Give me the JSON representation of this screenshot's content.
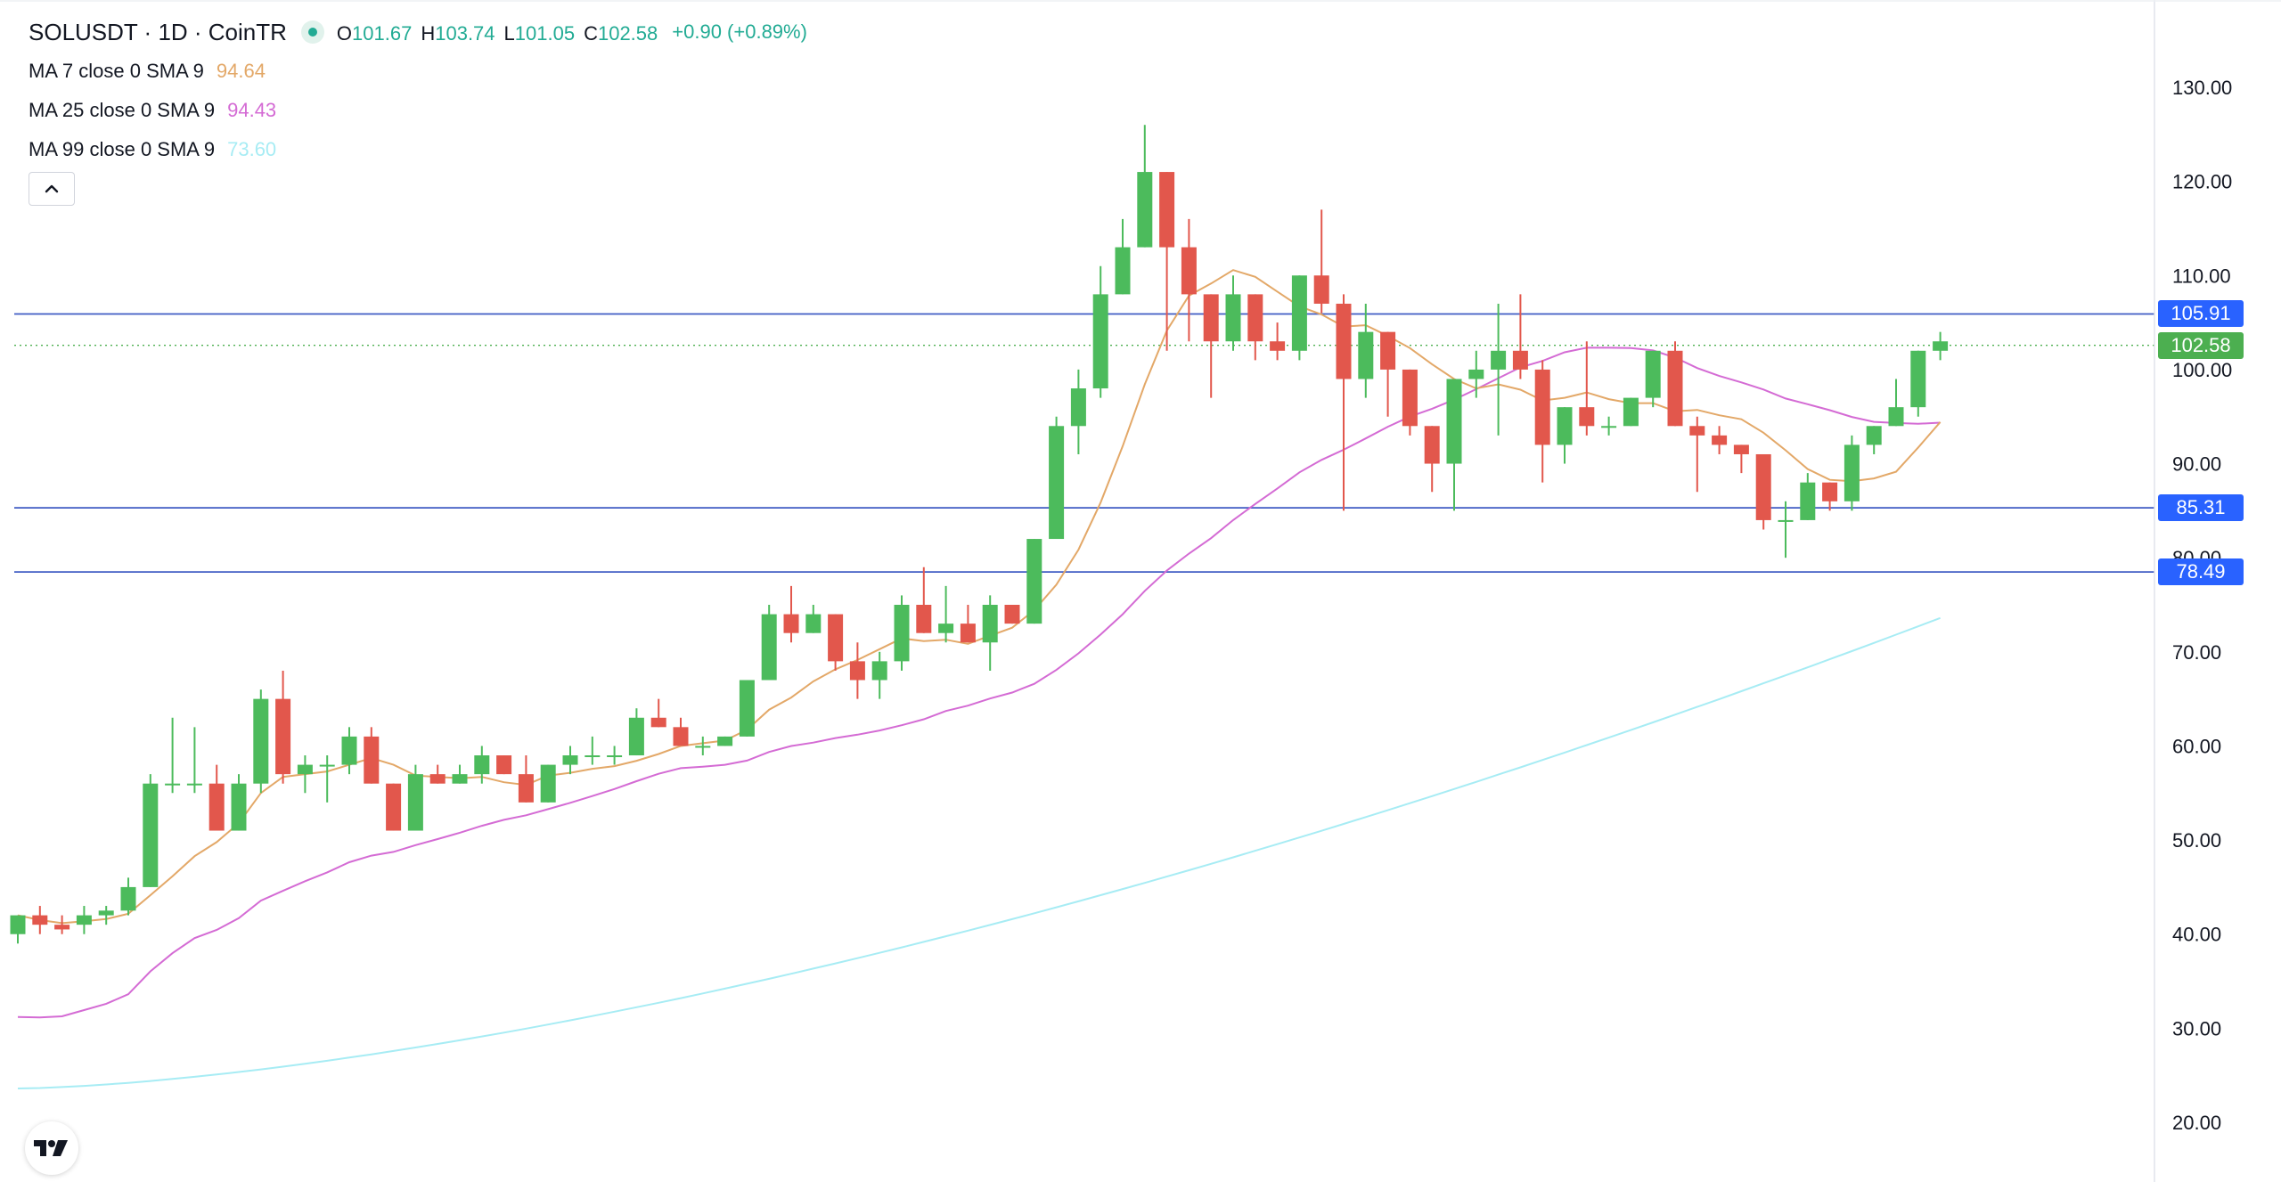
{
  "header": {
    "symbol": "SOLUSDT · 1D · CoinTR",
    "ohlc": [
      {
        "k": "O",
        "v": "101.67"
      },
      {
        "k": "H",
        "v": "103.74"
      },
      {
        "k": "L",
        "v": "101.05"
      },
      {
        "k": "C",
        "v": "102.58"
      }
    ],
    "change": "+0.90 (+0.89%)"
  },
  "indicators": [
    {
      "label": "MA 7 close 0 SMA 9",
      "value": "94.64",
      "color": "#e3a868"
    },
    {
      "label": "MA 25 close 0 SMA 9",
      "value": "94.43",
      "color": "#d46bd4"
    },
    {
      "label": "MA 99 close 0 SMA 9",
      "value": "73.60",
      "color": "#a7ecf4"
    }
  ],
  "price_tags": [
    {
      "value": "105.91",
      "color": "#2962ff"
    },
    {
      "value": "102.58",
      "color": "#4caf50"
    },
    {
      "value": "85.31",
      "color": "#2962ff"
    },
    {
      "value": "78.49",
      "color": "#2962ff"
    }
  ],
  "icons": {
    "collapse": "chevron-up-icon",
    "logo": "tradingview-logo-icon"
  },
  "chart_data": {
    "type": "candlestick",
    "y_range": [
      15,
      135
    ],
    "y_ticks": [
      "130.00",
      "120.00",
      "110.00",
      "100.00",
      "90.00",
      "80.00",
      "70.00",
      "60.00",
      "50.00",
      "40.00",
      "30.00",
      "20.00"
    ],
    "grid": false,
    "up_color": "#4cbb5c",
    "down_color": "#e2574c",
    "horizontal_lines": [
      105.91,
      85.31,
      78.49
    ],
    "last_price": 102.58,
    "candles": [
      [
        40,
        42,
        39,
        42
      ],
      [
        42,
        43,
        40,
        41
      ],
      [
        41,
        42,
        40,
        40.5
      ],
      [
        41,
        43,
        40,
        42
      ],
      [
        42,
        43,
        41,
        42.5
      ],
      [
        42.5,
        46,
        42,
        45
      ],
      [
        45,
        57,
        45,
        56
      ],
      [
        56,
        63,
        55,
        56
      ],
      [
        56,
        62,
        55,
        56
      ],
      [
        56,
        58,
        51,
        51
      ],
      [
        51,
        57,
        51,
        56
      ],
      [
        56,
        66,
        55,
        65
      ],
      [
        65,
        68,
        56,
        57
      ],
      [
        57,
        59,
        55,
        58
      ],
      [
        58,
        59,
        54,
        58
      ],
      [
        58,
        62,
        57,
        61
      ],
      [
        61,
        62,
        56,
        56
      ],
      [
        56,
        56,
        51,
        51
      ],
      [
        51,
        58,
        51,
        57
      ],
      [
        57,
        58,
        56,
        56
      ],
      [
        56,
        58,
        56,
        57
      ],
      [
        57,
        60,
        56,
        59
      ],
      [
        59,
        59,
        57,
        57
      ],
      [
        57,
        59,
        54,
        54
      ],
      [
        54,
        58,
        54,
        58
      ],
      [
        58,
        60,
        57,
        59
      ],
      [
        59,
        61,
        58,
        59
      ],
      [
        59,
        60,
        58,
        59
      ],
      [
        59,
        64,
        59,
        63
      ],
      [
        63,
        65,
        62,
        62
      ],
      [
        62,
        63,
        60,
        60
      ],
      [
        60,
        61,
        59,
        60
      ],
      [
        60,
        61,
        60,
        61
      ],
      [
        61,
        67,
        61,
        67
      ],
      [
        67,
        75,
        67,
        74
      ],
      [
        74,
        77,
        71,
        72
      ],
      [
        72,
        75,
        72,
        74
      ],
      [
        74,
        74,
        68,
        69
      ],
      [
        69,
        71,
        65,
        67
      ],
      [
        67,
        70,
        65,
        69
      ],
      [
        69,
        76,
        68,
        75
      ],
      [
        75,
        79,
        72,
        72
      ],
      [
        72,
        77,
        71,
        73
      ],
      [
        73,
        75,
        71,
        71
      ],
      [
        71,
        76,
        68,
        75
      ],
      [
        75,
        75,
        73,
        73
      ],
      [
        73,
        82,
        73,
        82
      ],
      [
        82,
        95,
        82,
        94
      ],
      [
        94,
        100,
        91,
        98
      ],
      [
        98,
        111,
        97,
        108
      ],
      [
        108,
        116,
        108,
        113
      ],
      [
        113,
        126,
        113,
        121
      ],
      [
        121,
        121,
        102,
        113
      ],
      [
        113,
        116,
        103,
        108
      ],
      [
        108,
        108,
        97,
        103
      ],
      [
        103,
        110,
        102,
        108
      ],
      [
        108,
        108,
        101,
        103
      ],
      [
        103,
        105,
        101,
        102
      ],
      [
        102,
        110,
        101,
        110
      ],
      [
        110,
        117,
        106,
        107
      ],
      [
        107,
        108,
        85,
        99
      ],
      [
        99,
        107,
        97,
        104
      ],
      [
        104,
        104,
        95,
        100
      ],
      [
        100,
        100,
        93,
        94
      ],
      [
        94,
        94,
        87,
        90
      ],
      [
        90,
        99,
        85,
        99
      ],
      [
        99,
        102,
        97,
        100
      ],
      [
        100,
        107,
        93,
        102
      ],
      [
        102,
        108,
        99,
        100
      ],
      [
        100,
        101,
        88,
        92
      ],
      [
        92,
        96,
        90,
        96
      ],
      [
        96,
        103,
        93,
        94
      ],
      [
        94,
        95,
        93,
        94
      ],
      [
        94,
        97,
        94,
        97
      ],
      [
        97,
        102,
        96,
        102
      ],
      [
        102,
        103,
        94,
        94
      ],
      [
        94,
        95,
        87,
        93
      ],
      [
        93,
        94,
        91,
        92
      ],
      [
        92,
        92,
        89,
        91
      ],
      [
        91,
        91,
        83,
        84
      ],
      [
        84,
        86,
        80,
        84
      ],
      [
        84,
        89,
        84,
        88
      ],
      [
        88,
        88,
        85,
        86
      ],
      [
        86,
        93,
        85,
        92
      ],
      [
        92,
        94,
        91,
        94
      ],
      [
        94,
        99,
        94,
        96
      ],
      [
        96,
        102,
        95,
        102
      ],
      [
        102,
        104,
        101,
        103
      ]
    ]
  }
}
